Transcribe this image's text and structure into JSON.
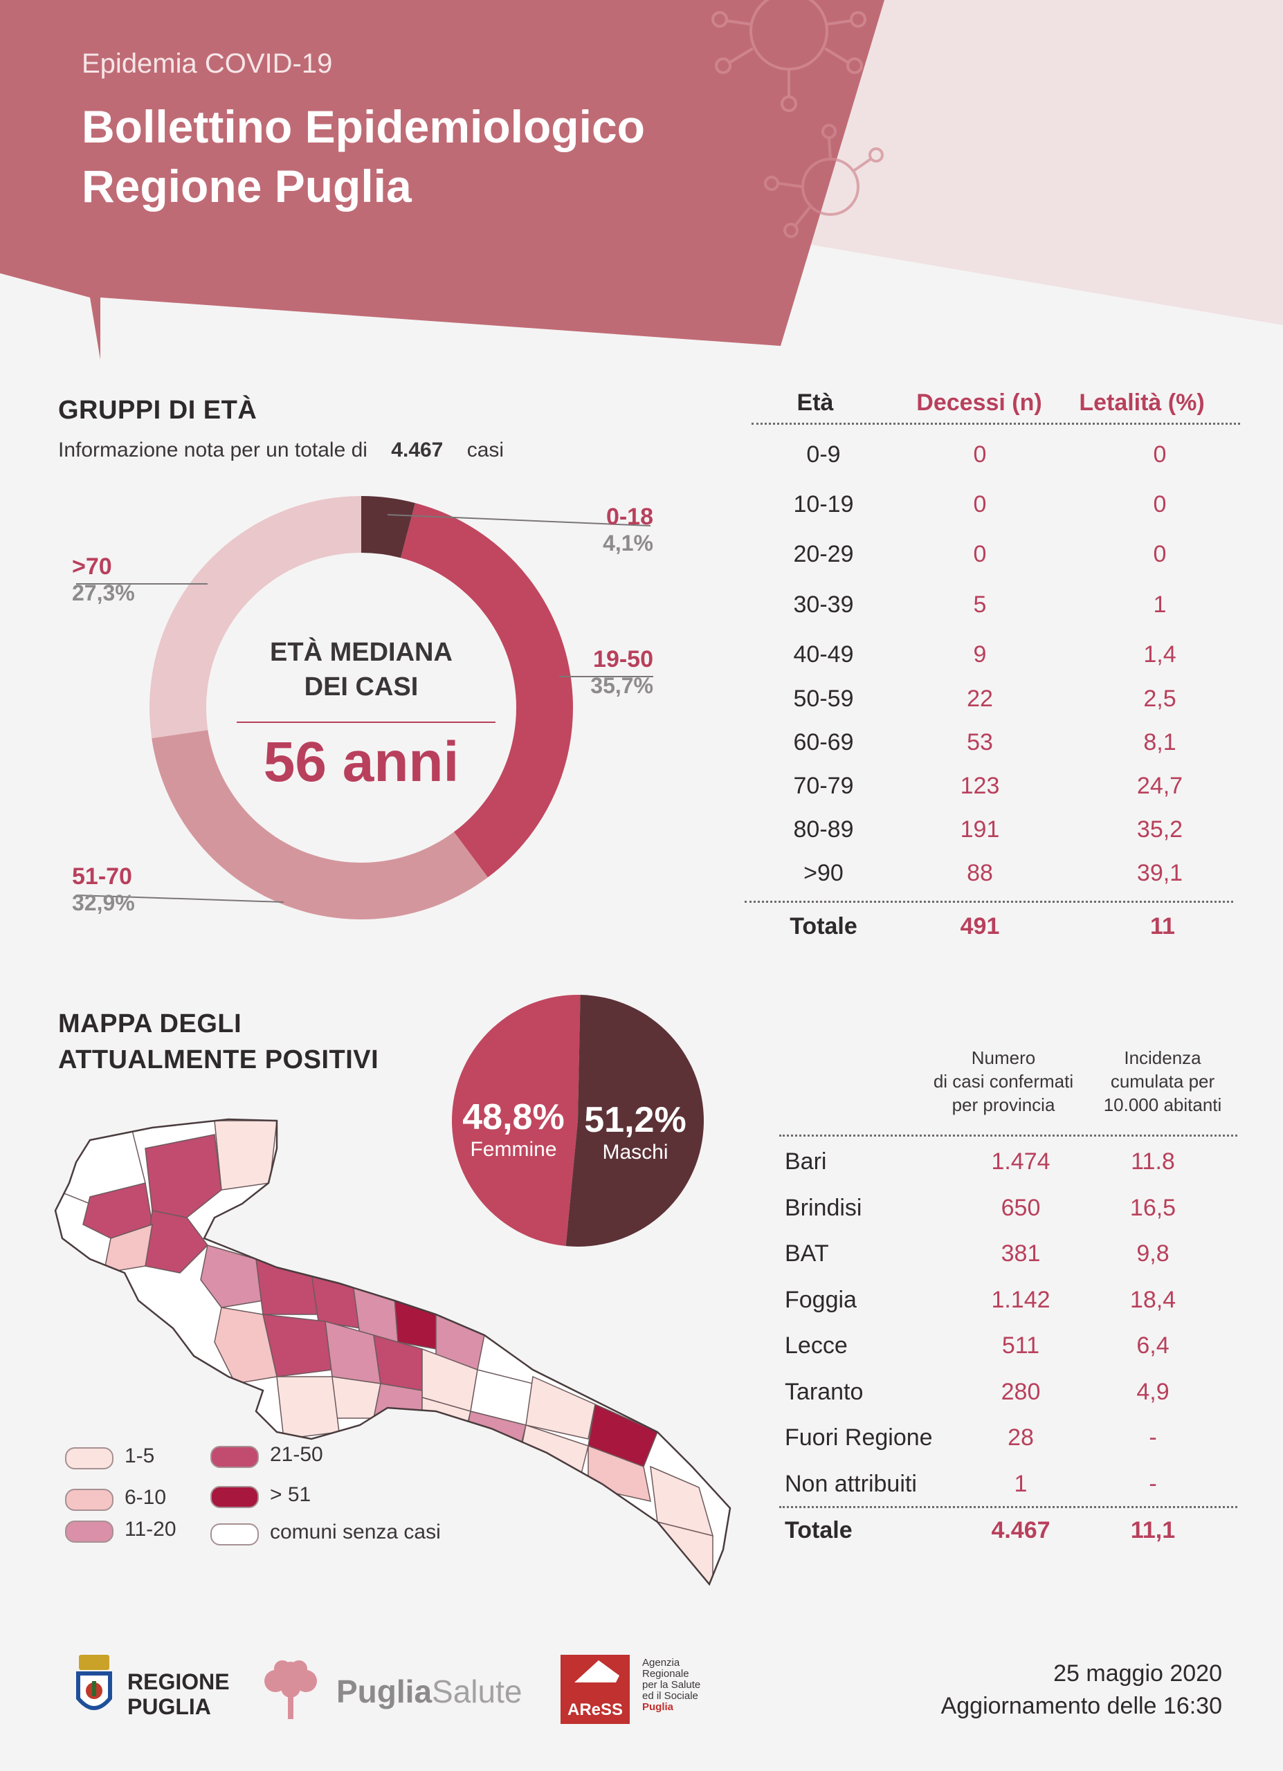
{
  "header": {
    "subtitle": "Epidemia COVID-19",
    "title_line1": "Bollettino Epidemiologico",
    "title_line2": "Regione Puglia"
  },
  "age_groups": {
    "title": "GRUPPI DI ETÀ",
    "info_prefix": "Informazione nota per un totale di",
    "info_total": "4.467",
    "info_suffix": "casi",
    "median_line1": "ETÀ MEDIANA",
    "median_line2": "DEI CASI",
    "median_value": "56 anni"
  },
  "chart_data": {
    "type": "pie",
    "categories": [
      "0-18",
      "19-50",
      "51-70",
      ">70"
    ],
    "values": [
      4.1,
      35.7,
      32.9,
      27.3
    ],
    "value_labels": [
      "4,1%",
      "35,7%",
      "32,9%",
      "27,3%"
    ],
    "colors": [
      "#5c3237",
      "#c0475f",
      "#d4969d",
      "#e9c7cb"
    ]
  },
  "age_table": {
    "headers": [
      "Età",
      "Decessi (n)",
      "Letalità (%)"
    ],
    "rows": [
      [
        "0-9",
        "0",
        "0"
      ],
      [
        "10-19",
        "0",
        "0"
      ],
      [
        "20-29",
        "0",
        "0"
      ],
      [
        "30-39",
        "5",
        "1"
      ],
      [
        "40-49",
        "9",
        "1,4"
      ],
      [
        "50-59",
        "22",
        "2,5"
      ],
      [
        "60-69",
        "53",
        "8,1"
      ],
      [
        "70-79",
        "123",
        "24,7"
      ],
      [
        "80-89",
        "191",
        "35,2"
      ],
      [
        ">90",
        "88",
        "39,1"
      ]
    ],
    "total": [
      "Totale",
      "491",
      "11"
    ]
  },
  "map": {
    "title_line1": "MAPPA DEGLI",
    "title_line2": "ATTUALMENTE POSITIVI",
    "legend": [
      {
        "label": "1-5",
        "color": "#fbe3df"
      },
      {
        "label": "6-10",
        "color": "#f5c4c4"
      },
      {
        "label": "11-20",
        "color": "#d990a8"
      },
      {
        "label": "21-50",
        "color": "#c24b70"
      },
      {
        "label": "> 51",
        "color": "#a8173e"
      },
      {
        "label": "comuni senza casi",
        "color": "#ffffff"
      }
    ]
  },
  "gender": {
    "female_pct": "48,8%",
    "female_label": "Femmine",
    "male_pct": "51,2%",
    "male_label": "Maschi",
    "female_value": 48.8,
    "male_value": 51.2,
    "female_color": "#c0475f",
    "male_color": "#5c3237"
  },
  "province_table": {
    "header_cases": [
      "Numero",
      "di casi confermati",
      "per provincia"
    ],
    "header_incidence": [
      "Incidenza",
      "cumulata per",
      "10.000 abitanti"
    ],
    "rows": [
      [
        "Bari",
        "1.474",
        "11.8"
      ],
      [
        "Brindisi",
        "650",
        "16,5"
      ],
      [
        "BAT",
        "381",
        "9,8"
      ],
      [
        "Foggia",
        "1.142",
        "18,4"
      ],
      [
        "Lecce",
        "511",
        "6,4"
      ],
      [
        "Taranto",
        "280",
        "4,9"
      ],
      [
        "Fuori Regione",
        "28",
        "-"
      ],
      [
        "Non attribuiti",
        "1",
        "-"
      ]
    ],
    "total": [
      "Totale",
      "4.467",
      "11,1"
    ]
  },
  "footer": {
    "regione_line1": "REGIONE",
    "regione_line2": "PUGLIA",
    "puglia_bold": "Puglia",
    "puglia_light": "Salute",
    "aress_logo_text": "AReSS",
    "aress_desc": [
      "Agenzia",
      "Regionale",
      "per la Salute",
      "ed il Sociale",
      "Puglia"
    ],
    "date": "25 maggio 2020",
    "update": "Aggiornamento delle 16:30"
  },
  "colors": {
    "header_bg": "#bf6b75",
    "accent": "#b8405c",
    "dark": "#2e2a2b"
  }
}
